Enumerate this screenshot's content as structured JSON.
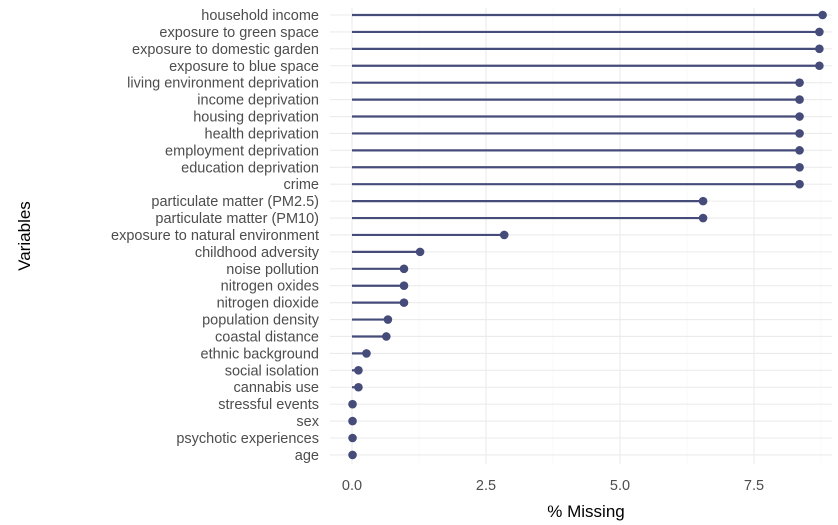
{
  "chart_data": {
    "type": "lollipop",
    "xlabel": "% Missing",
    "ylabel": "Variables",
    "xlim": [
      0,
      8.8
    ],
    "xticks": [
      0,
      2.5,
      5,
      7.5
    ],
    "xtick_labels": [
      "0.0",
      "2.5",
      "5.0",
      "7.5"
    ],
    "grid": true,
    "color": "#464c7a",
    "categories": [
      "household income",
      "exposure to green space",
      "exposure to domestic garden",
      "exposure to blue space",
      "living environment deprivation",
      "income deprivation",
      "housing deprivation",
      "health deprivation",
      "employment deprivation",
      "education deprivation",
      "crime",
      "particulate matter (PM2.5)",
      "particulate matter (PM10)",
      "exposure to natural environment",
      "childhood adversity",
      "noise pollution",
      "nitrogen oxides",
      "nitrogen dioxide",
      "population density",
      "coastal distance",
      "ethnic background",
      "social isolation",
      "cannabis use",
      "stressful events",
      "sex",
      "psychotic experiences",
      "age"
    ],
    "values": [
      8.78,
      8.72,
      8.72,
      8.72,
      8.35,
      8.35,
      8.35,
      8.35,
      8.35,
      8.35,
      8.35,
      6.55,
      6.55,
      2.84,
      1.27,
      0.97,
      0.97,
      0.97,
      0.67,
      0.64,
      0.27,
      0.12,
      0.12,
      0.01,
      0.01,
      0.01,
      0.01
    ]
  }
}
